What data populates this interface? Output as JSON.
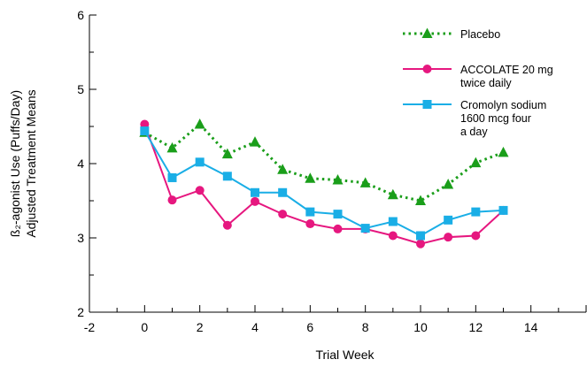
{
  "chart_data": {
    "type": "line",
    "xlabel": "Trial Week",
    "ylabel_line1": "ß₂-agonist Use (Puffs/Day)",
    "ylabel_line2": "Adjusted Treatment Means",
    "xlim": [
      -2,
      16
    ],
    "ylim": [
      2,
      6
    ],
    "x_ticks": [
      -2,
      0,
      2,
      4,
      6,
      8,
      10,
      12,
      14
    ],
    "y_ticks": [
      2,
      3,
      4,
      5,
      6
    ],
    "legend_position": "top-right",
    "grid": false,
    "series": [
      {
        "name": "Placebo",
        "legend_lines": [
          "Placebo"
        ],
        "color": "#1a9e1a",
        "line_style": "dotted",
        "marker": "triangle",
        "x": [
          0,
          1,
          2,
          3,
          4,
          5,
          6,
          7,
          8,
          9,
          10,
          11,
          12,
          13
        ],
        "y": [
          4.42,
          4.21,
          4.53,
          4.13,
          4.29,
          3.92,
          3.8,
          3.78,
          3.74,
          3.58,
          3.5,
          3.72,
          4.01,
          4.15
        ]
      },
      {
        "name": "ACCOLATE 20 mg twice daily",
        "legend_lines": [
          "ACCOLATE 20 mg",
          "twice daily"
        ],
        "color": "#e6177f",
        "line_style": "solid",
        "marker": "circle",
        "x": [
          0,
          1,
          2,
          3,
          4,
          5,
          6,
          7,
          8,
          9,
          10,
          11,
          12,
          13
        ],
        "y": [
          4.53,
          3.51,
          3.64,
          3.17,
          3.49,
          3.32,
          3.19,
          3.12,
          3.12,
          3.03,
          2.92,
          3.01,
          3.03,
          3.37
        ]
      },
      {
        "name": "Cromolyn sodium 1600 mcg four a day",
        "legend_lines": [
          "Cromolyn sodium",
          "1600 mcg four",
          "a day"
        ],
        "color": "#1aaee6",
        "line_style": "solid",
        "marker": "square",
        "x": [
          0,
          1,
          2,
          3,
          4,
          5,
          6,
          7,
          8,
          9,
          10,
          11,
          12,
          13
        ],
        "y": [
          4.44,
          3.81,
          4.02,
          3.83,
          3.61,
          3.61,
          3.35,
          3.32,
          3.13,
          3.22,
          3.03,
          3.24,
          3.35,
          3.37
        ]
      }
    ]
  }
}
